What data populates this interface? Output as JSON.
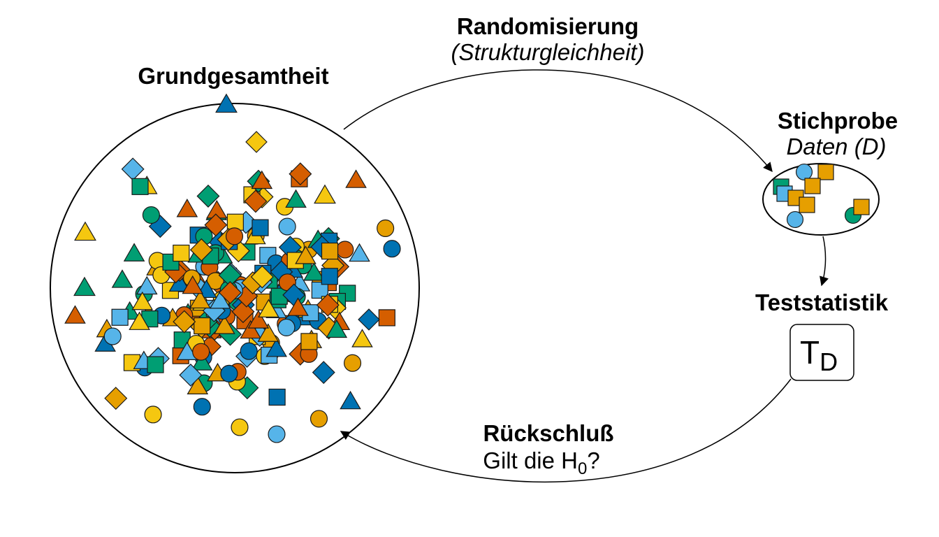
{
  "labels": {
    "population_title": "Grundgesamtheit",
    "randomization_title": "Randomisierung",
    "randomization_subtitle": "(Strukturgleichheit)",
    "sample_title": "Stichprobe",
    "sample_subtitle": "Daten (D)",
    "statistic_title": "Teststatistik",
    "statistic_symbol": "T",
    "statistic_subscript": "D",
    "inference_title": "Rückschluß",
    "inference_question_prefix": "Gilt die H",
    "inference_question_subscript": "0",
    "inference_question_suffix": "?"
  },
  "colors": {
    "yellow": "#F5C710",
    "orange": "#E69F00",
    "vermillion": "#D55E00",
    "skyblue": "#56B4E9",
    "blue": "#0072B2",
    "green": "#009E73",
    "outline": "#1a1a1a"
  },
  "legend_shapes": [
    "circle",
    "triangle",
    "square",
    "diamond"
  ]
}
